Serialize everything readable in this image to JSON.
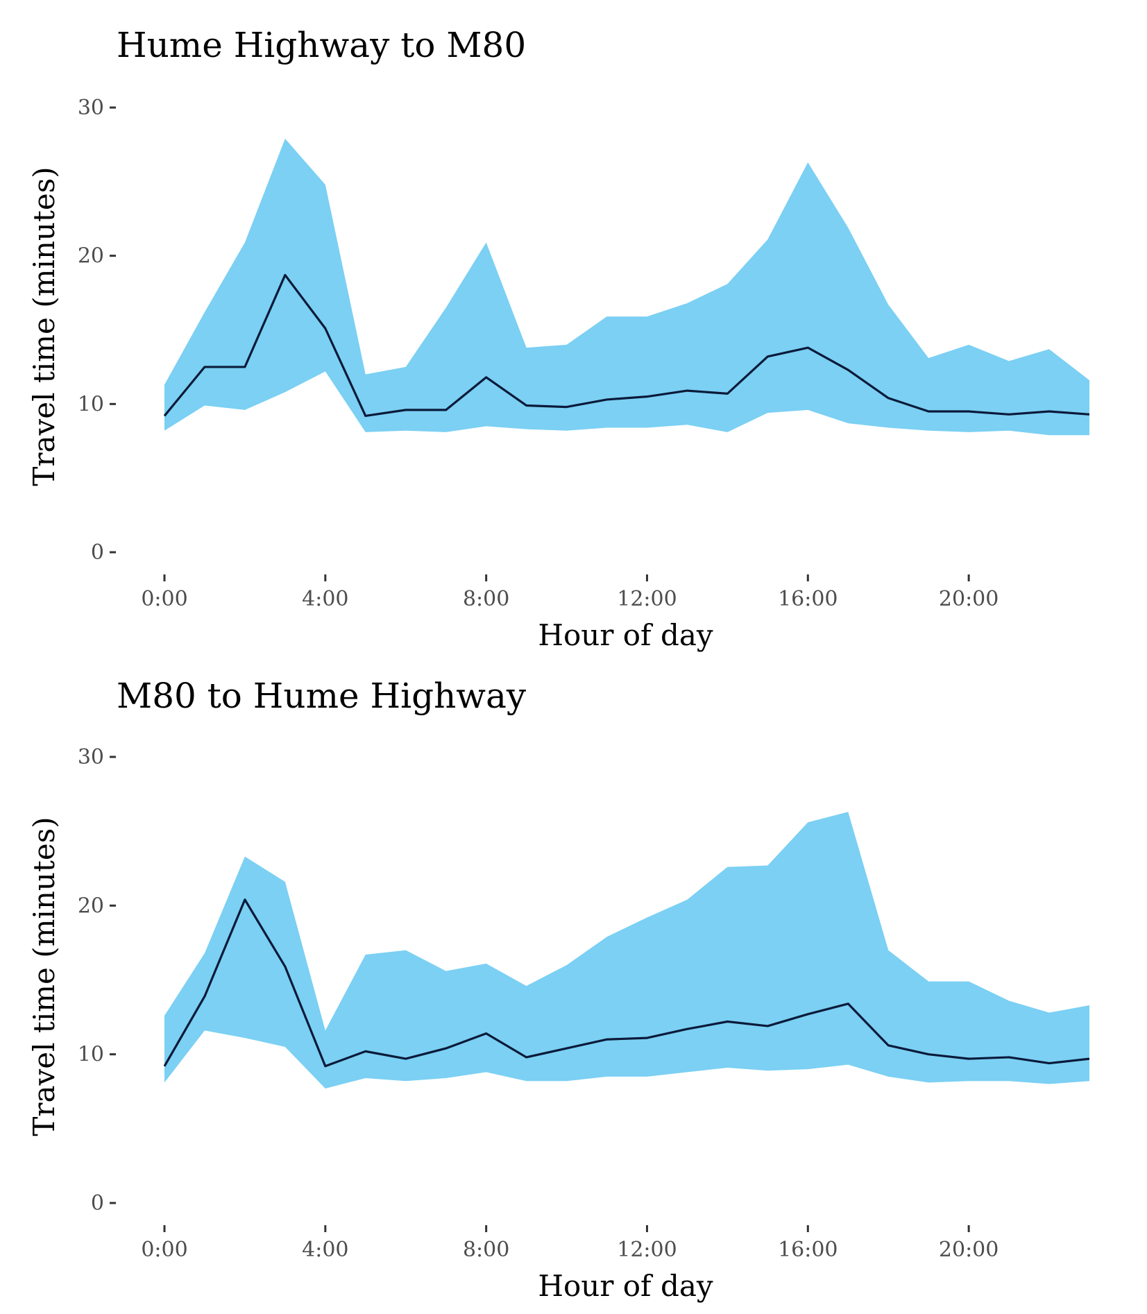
{
  "colors": {
    "band": "#7BD0F3",
    "line": "#0B1A3A",
    "tick": "#333333"
  },
  "chart_data": [
    {
      "type": "area",
      "title": "Hume Highway to M80",
      "xlabel": "Hour of day",
      "ylabel": "Travel time (minutes)",
      "ylim": [
        0,
        30
      ],
      "xlim": [
        0,
        23
      ],
      "x_ticks": [
        {
          "value": 0,
          "label": "0:00"
        },
        {
          "value": 4,
          "label": "4:00"
        },
        {
          "value": 8,
          "label": "8:00"
        },
        {
          "value": 12,
          "label": "12:00"
        },
        {
          "value": 16,
          "label": "16:00"
        },
        {
          "value": 20,
          "label": "20:00"
        }
      ],
      "y_ticks": [
        {
          "value": 0,
          "label": "0"
        },
        {
          "value": 10,
          "label": "10"
        },
        {
          "value": 20,
          "label": "20"
        },
        {
          "value": 30,
          "label": "30"
        }
      ],
      "grid": false,
      "x": [
        0,
        1,
        2,
        3,
        4,
        5,
        6,
        7,
        8,
        9,
        10,
        11,
        12,
        13,
        14,
        15,
        16,
        17,
        18,
        19,
        20,
        21,
        22,
        23
      ],
      "upper": [
        11.3,
        16.2,
        20.9,
        27.9,
        24.8,
        12.0,
        12.5,
        16.5,
        20.9,
        13.8,
        14.0,
        15.9,
        15.9,
        16.8,
        18.1,
        21.1,
        26.3,
        21.9,
        16.7,
        13.1,
        14.0,
        12.9,
        13.7,
        11.6
      ],
      "median": [
        9.2,
        12.5,
        12.5,
        18.7,
        15.1,
        9.2,
        9.6,
        9.6,
        11.8,
        9.9,
        9.8,
        10.3,
        10.5,
        10.9,
        10.7,
        13.2,
        13.8,
        12.3,
        10.4,
        9.5,
        9.5,
        9.3,
        9.5,
        9.3
      ],
      "lower": [
        8.2,
        9.9,
        9.6,
        10.8,
        12.2,
        8.1,
        8.2,
        8.1,
        8.5,
        8.3,
        8.2,
        8.4,
        8.4,
        8.6,
        8.1,
        9.4,
        9.6,
        8.7,
        8.4,
        8.2,
        8.1,
        8.2,
        7.9,
        7.9
      ]
    },
    {
      "type": "area",
      "title": "M80 to Hume Highway",
      "xlabel": "Hour of day",
      "ylabel": "Travel time (minutes)",
      "ylim": [
        0,
        30
      ],
      "xlim": [
        0,
        23
      ],
      "x_ticks": [
        {
          "value": 0,
          "label": "0:00"
        },
        {
          "value": 4,
          "label": "4:00"
        },
        {
          "value": 8,
          "label": "8:00"
        },
        {
          "value": 12,
          "label": "12:00"
        },
        {
          "value": 16,
          "label": "16:00"
        },
        {
          "value": 20,
          "label": "20:00"
        }
      ],
      "y_ticks": [
        {
          "value": 0,
          "label": "0"
        },
        {
          "value": 10,
          "label": "10"
        },
        {
          "value": 20,
          "label": "20"
        },
        {
          "value": 30,
          "label": "30"
        }
      ],
      "grid": false,
      "x": [
        0,
        1,
        2,
        3,
        4,
        5,
        6,
        7,
        8,
        9,
        10,
        11,
        12,
        13,
        14,
        15,
        16,
        17,
        18,
        19,
        20,
        21,
        22,
        23
      ],
      "upper": [
        12.6,
        16.8,
        23.3,
        21.6,
        11.6,
        16.7,
        17.0,
        15.6,
        16.1,
        14.6,
        16.0,
        17.9,
        19.2,
        20.4,
        22.6,
        22.7,
        25.6,
        26.3,
        17.0,
        14.9,
        14.9,
        13.6,
        12.8,
        13.3
      ],
      "median": [
        9.2,
        13.9,
        20.4,
        15.9,
        9.2,
        10.2,
        9.7,
        10.4,
        11.4,
        9.8,
        10.4,
        11.0,
        11.1,
        11.7,
        12.2,
        11.9,
        12.7,
        13.4,
        10.6,
        10.0,
        9.7,
        9.8,
        9.4,
        9.7
      ],
      "lower": [
        8.1,
        11.6,
        11.1,
        10.5,
        7.7,
        8.4,
        8.2,
        8.4,
        8.8,
        8.2,
        8.2,
        8.5,
        8.5,
        8.8,
        9.1,
        8.9,
        9.0,
        9.3,
        8.5,
        8.1,
        8.2,
        8.2,
        8.0,
        8.2
      ]
    }
  ]
}
